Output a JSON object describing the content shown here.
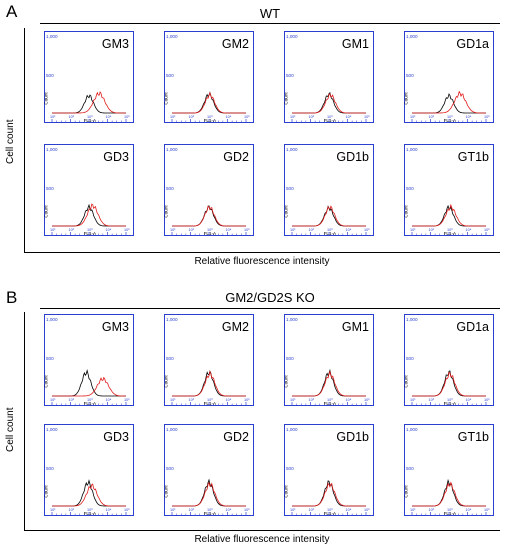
{
  "panels": [
    {
      "letter": "A",
      "group_label": "WT",
      "y_axis_label": "Cell count",
      "x_axis_label": "Relative fluorescence intensity"
    },
    {
      "letter": "B",
      "group_label": "GM2/GD2S KO",
      "y_axis_label": "Cell count",
      "x_axis_label": "Relative fluorescence intensity"
    }
  ],
  "colors": {
    "frame": "#2b3fd0",
    "control": "#000000",
    "sample": "#e01b1b"
  },
  "chart_data": [
    {
      "type": "line",
      "panel": "A",
      "title": "GM3",
      "ylim": [
        0,
        1000
      ],
      "y_ticks": [
        "1,000",
        "500"
      ],
      "ylabel": "Count",
      "xlabel": "FL1-A",
      "series": [
        {
          "color": "black",
          "peak_log": 2.0,
          "height": 0.22,
          "width": 0.24
        },
        {
          "color": "red",
          "peak_log": 2.55,
          "height": 0.25,
          "width": 0.3
        }
      ]
    },
    {
      "type": "line",
      "panel": "A",
      "title": "GM2",
      "ylim": [
        0,
        1000
      ],
      "y_ticks": [
        "1,000",
        "500"
      ],
      "ylabel": "Count",
      "xlabel": "FL1-A",
      "series": [
        {
          "color": "black",
          "peak_log": 2.0,
          "height": 0.24,
          "width": 0.24
        },
        {
          "color": "red",
          "peak_log": 2.05,
          "height": 0.23,
          "width": 0.25
        }
      ]
    },
    {
      "type": "line",
      "panel": "A",
      "title": "GM1",
      "ylim": [
        0,
        1000
      ],
      "y_ticks": [
        "1,000",
        "500"
      ],
      "ylabel": "Count",
      "xlabel": "FL1-A",
      "series": [
        {
          "color": "black",
          "peak_log": 2.0,
          "height": 0.24,
          "width": 0.24
        },
        {
          "color": "red",
          "peak_log": 2.08,
          "height": 0.23,
          "width": 0.26
        }
      ]
    },
    {
      "type": "line",
      "panel": "A",
      "title": "GD1a",
      "ylim": [
        0,
        1000
      ],
      "y_ticks": [
        "1,000",
        "500"
      ],
      "ylabel": "Count",
      "xlabel": "FL1-A",
      "series": [
        {
          "color": "black",
          "peak_log": 2.0,
          "height": 0.22,
          "width": 0.24
        },
        {
          "color": "red",
          "peak_log": 2.6,
          "height": 0.25,
          "width": 0.3
        }
      ]
    },
    {
      "type": "line",
      "panel": "A",
      "title": "GD3",
      "ylim": [
        0,
        1000
      ],
      "y_ticks": [
        "1,000",
        "500"
      ],
      "ylabel": "Count",
      "xlabel": "FL1-A",
      "series": [
        {
          "color": "black",
          "peak_log": 2.0,
          "height": 0.24,
          "width": 0.24
        },
        {
          "color": "red",
          "peak_log": 2.2,
          "height": 0.26,
          "width": 0.28
        }
      ]
    },
    {
      "type": "line",
      "panel": "A",
      "title": "GD2",
      "ylim": [
        0,
        1000
      ],
      "y_ticks": [
        "1,000",
        "500"
      ],
      "ylabel": "Count",
      "xlabel": "FL1-A",
      "series": [
        {
          "color": "black",
          "peak_log": 2.0,
          "height": 0.24,
          "width": 0.24
        },
        {
          "color": "red",
          "peak_log": 2.03,
          "height": 0.24,
          "width": 0.25
        }
      ]
    },
    {
      "type": "line",
      "panel": "A",
      "title": "GD1b",
      "ylim": [
        0,
        1000
      ],
      "y_ticks": [
        "1,000",
        "500"
      ],
      "ylabel": "Count",
      "xlabel": "FL1-A",
      "series": [
        {
          "color": "black",
          "peak_log": 2.0,
          "height": 0.23,
          "width": 0.24
        },
        {
          "color": "red",
          "peak_log": 2.05,
          "height": 0.24,
          "width": 0.25
        }
      ]
    },
    {
      "type": "line",
      "panel": "A",
      "title": "GT1b",
      "ylim": [
        0,
        1000
      ],
      "y_ticks": [
        "1,000",
        "500"
      ],
      "ylabel": "Count",
      "xlabel": "FL1-A",
      "series": [
        {
          "color": "black",
          "peak_log": 2.0,
          "height": 0.24,
          "width": 0.24
        },
        {
          "color": "red",
          "peak_log": 2.1,
          "height": 0.24,
          "width": 0.27
        }
      ]
    },
    {
      "type": "line",
      "panel": "B",
      "title": "GM3",
      "ylim": [
        0,
        1000
      ],
      "y_ticks": [
        "1,000",
        "500"
      ],
      "ylabel": "Count",
      "xlabel": "FL1-A",
      "series": [
        {
          "color": "black",
          "peak_log": 1.85,
          "height": 0.3,
          "width": 0.24
        },
        {
          "color": "red",
          "peak_log": 2.75,
          "height": 0.22,
          "width": 0.3
        }
      ]
    },
    {
      "type": "line",
      "panel": "B",
      "title": "GM2",
      "ylim": [
        0,
        1000
      ],
      "y_ticks": [
        "1,000",
        "500"
      ],
      "ylabel": "Count",
      "xlabel": "FL1-A",
      "series": [
        {
          "color": "black",
          "peak_log": 2.0,
          "height": 0.3,
          "width": 0.24
        },
        {
          "color": "red",
          "peak_log": 2.05,
          "height": 0.28,
          "width": 0.26
        }
      ]
    },
    {
      "type": "line",
      "panel": "B",
      "title": "GM1",
      "ylim": [
        0,
        1000
      ],
      "y_ticks": [
        "1,000",
        "500"
      ],
      "ylabel": "Count",
      "xlabel": "FL1-A",
      "series": [
        {
          "color": "black",
          "peak_log": 2.0,
          "height": 0.3,
          "width": 0.24
        },
        {
          "color": "red",
          "peak_log": 2.05,
          "height": 0.28,
          "width": 0.26
        }
      ]
    },
    {
      "type": "line",
      "panel": "B",
      "title": "GD1a",
      "ylim": [
        0,
        1000
      ],
      "y_ticks": [
        "1,000",
        "500"
      ],
      "ylabel": "Count",
      "xlabel": "FL1-A",
      "series": [
        {
          "color": "black",
          "peak_log": 2.0,
          "height": 0.3,
          "width": 0.24
        },
        {
          "color": "red",
          "peak_log": 2.05,
          "height": 0.28,
          "width": 0.26
        }
      ]
    },
    {
      "type": "line",
      "panel": "B",
      "title": "GD3",
      "ylim": [
        0,
        1000
      ],
      "y_ticks": [
        "1,000",
        "500"
      ],
      "ylabel": "Count",
      "xlabel": "FL1-A",
      "series": [
        {
          "color": "black",
          "peak_log": 1.95,
          "height": 0.3,
          "width": 0.24
        },
        {
          "color": "red",
          "peak_log": 2.15,
          "height": 0.26,
          "width": 0.28
        }
      ]
    },
    {
      "type": "line",
      "panel": "B",
      "title": "GD2",
      "ylim": [
        0,
        1000
      ],
      "y_ticks": [
        "1,000",
        "500"
      ],
      "ylabel": "Count",
      "xlabel": "FL1-A",
      "series": [
        {
          "color": "black",
          "peak_log": 2.0,
          "height": 0.3,
          "width": 0.24
        },
        {
          "color": "red",
          "peak_log": 2.05,
          "height": 0.28,
          "width": 0.26
        }
      ]
    },
    {
      "type": "line",
      "panel": "B",
      "title": "GD1b",
      "ylim": [
        0,
        1000
      ],
      "y_ticks": [
        "1,000",
        "500"
      ],
      "ylabel": "Count",
      "xlabel": "FL1-A",
      "series": [
        {
          "color": "black",
          "peak_log": 2.0,
          "height": 0.3,
          "width": 0.24
        },
        {
          "color": "red",
          "peak_log": 2.05,
          "height": 0.28,
          "width": 0.26
        }
      ]
    },
    {
      "type": "line",
      "panel": "B",
      "title": "GT1b",
      "ylim": [
        0,
        1000
      ],
      "y_ticks": [
        "1,000",
        "500"
      ],
      "ylabel": "Count",
      "xlabel": "FL1-A",
      "series": [
        {
          "color": "black",
          "peak_log": 2.0,
          "height": 0.3,
          "width": 0.24
        },
        {
          "color": "red",
          "peak_log": 2.05,
          "height": 0.28,
          "width": 0.26
        }
      ]
    }
  ]
}
